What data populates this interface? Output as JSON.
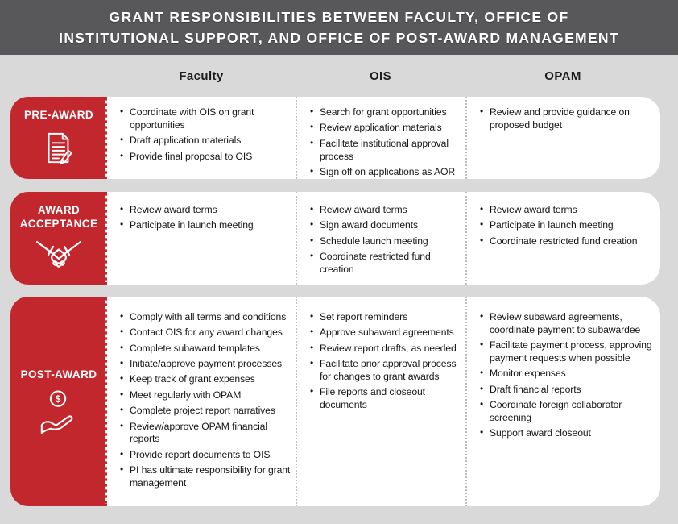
{
  "colors": {
    "accent_red": "#c1272d",
    "header_gray": "#58585a",
    "background_gray": "#d9d9d9",
    "text_dark": "#161616"
  },
  "title_lines": [
    "GRANT RESPONSIBILITIES BETWEEN FACULTY, OFFICE OF",
    "INSTITUTIONAL SUPPORT, AND OFFICE OF POST-AWARD MANAGEMENT"
  ],
  "columns": [
    "Faculty",
    "OIS",
    "OPAM"
  ],
  "rows": [
    {
      "label": "PRE-AWARD",
      "icon": "document-pencil-icon",
      "cells": {
        "faculty": [
          "Coordinate with OIS on grant opportunities",
          "Draft application materials",
          "Provide final proposal to OIS"
        ],
        "ois": [
          "Search for grant opportunities",
          "Review application materials",
          "Facilitate institutional approval process",
          "Sign off on applications as AOR"
        ],
        "opam": [
          "Review and provide guidance on proposed budget"
        ]
      }
    },
    {
      "label": "AWARD ACCEPTANCE",
      "icon": "handshake-icon",
      "cells": {
        "faculty": [
          "Review award terms",
          "Participate in launch meeting"
        ],
        "ois": [
          "Review award terms",
          "Sign award documents",
          "Schedule launch meeting",
          "Coordinate restricted fund creation"
        ],
        "opam": [
          "Review award terms",
          "Participate in launch meeting",
          "Coordinate restricted fund creation"
        ]
      }
    },
    {
      "label": "POST-AWARD",
      "icon": "hand-coin-icon",
      "cells": {
        "faculty": [
          "Comply with all terms and conditions",
          "Contact OIS for any award changes",
          "Complete subaward templates",
          "Initiate/approve payment processes",
          "Keep track of grant expenses",
          "Meet regularly with OPAM",
          "Complete project report narratives",
          "Review/approve OPAM financial reports",
          "Provide report documents to OIS",
          "PI has ultimate responsibility for grant management"
        ],
        "ois": [
          "Set report reminders",
          "Approve subaward agreements",
          "Review report drafts, as needed",
          "Facilitate prior approval process for changes to grant awards",
          "File reports and closeout documents"
        ],
        "opam": [
          "Review subaward agreements, coordinate payment to subawardee",
          "Facilitate payment process, approving payment requests when possible",
          "Monitor expenses",
          "Draft financial reports",
          "Coordinate foreign collaborator screening",
          "Support award closeout"
        ]
      }
    }
  ]
}
